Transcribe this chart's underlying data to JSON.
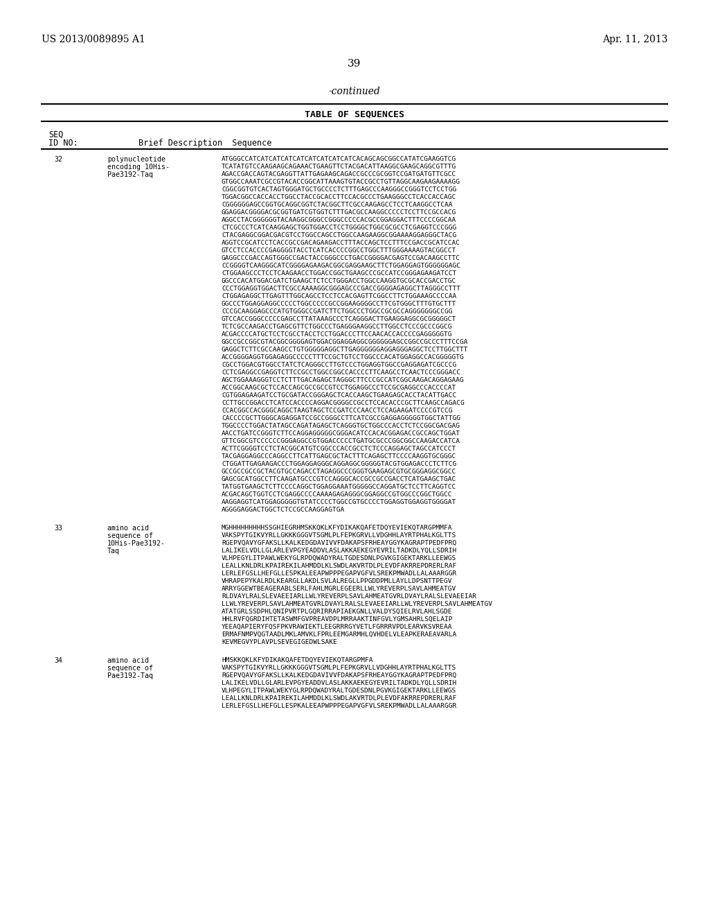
{
  "header_left": "US 2013/0089895 A1",
  "header_right": "Apr. 11, 2013",
  "page_number": "39",
  "continued": "-continued",
  "table_title": "TABLE OF SEQUENCES",
  "col_headers": [
    "SEQ\nID NO:",
    "Brief Description",
    "Sequence"
  ],
  "background_color": "#ffffff",
  "text_color": "#000000",
  "entries": [
    {
      "seq_id": "32",
      "description": "polynucleotide\nencoding 10His-\nPae3192-Taq",
      "sequence": "ATGGGCCATCATCATCATCATCATCATCATCATCACAGCAGCGGCCATATCGAAGGTCG\nTCATATGTCCAAGAAGCAGAAACTGAAGTTCTACGACATTAAGGCGAAGCAGGCGTTTG\nAGACCGACCAGTACGAGGTTATTGAGAAGCAGACCGCCCGCGGTCCGATGATGTTCGCC\nGTGGCCAAATCGCCGTACACCGGCATTAAAGTGTACCGCCTGTTAGGCAAGAAGAAAAGG\nCGGCGGTGTCACTAGTGGGATGCTGCCCCTCTTTGAGCCCAAGGGCCGGGTCCTCCTGG\nTGGACGGCCACCACCTGGCCTACCGCACCTTCCACGCCCTGAAGGGCCTCACCACCAGC\nCGGGGGGAGCCGGTGCAGGCGGTCTACGGCTTCGCCAAGAGCCTCCTCAAGGCCTCAA\nGGAGGACGGGGACGCGGTGATCGTGGTCTTTGACGCCAAGGCCCCCTCCTTCCGCCACG\nAGGCCTACGGGGGGTACAAGGCGGGCCGGGCCCCCACGCCGGAGGACTTTCCCCGGCAA\nCTCGCCCTCATCAAGGAGCTGGTGGACCTCCTGGGGCTGGCGCGCCTCGAGGTCCCGGG\nCTACGAGGCGGACGACGTCCTGGCCAGCCTGGCCAAGAAGGCGGAAAAGGAGGGCTACG\nAGGTCCGCATCCTCACCGCCGACAGAAGACCTTTACCAGCTCCTTTCCGACCGCATCCAC\nGTCCTCCACCCCGAGGGGTACCTCATCACCCCGGCCTGGCTTTGGGAAAAGTACGGCCT\nGAGGCCCGACCAGTGGGCCGACTACCGGGCCCTGACCGGGGACGAGTCCGACAAGCCTTC\nCCGGGGTCAAGGGCATCGGGGAGAAGACGGCGAGGAAGCTTCTGGAGGAGTGGGGGGAGC\nCTGGAAGCCCTCCTCAAGAACCTGGACCGGCTGAAGCCCGCCATCCGGGAGAAGATCCT\nGGCCCACATGGACGATCTGAAGCTCTCCTGGGACCTGGCCAAGGTGCGCACCGACCTGC\nCCCTGGAGGTGGACTTCGCCAAAAGGCGGGAGCCCGACCGGGGAGAGGCTTAGGGCCTTT\nCTGGAGAGGCTTGAGTTTGGCAGCCTCCTCCACGAGTTCGGCCTTCTGGAAAGCCCCAA\nGGCCCTGGAGGAGGCCCCCTGGCCCCCGCCGGAAGGGGCCTTCGTGGGCTTTGTGCTTT\nCCCGCAAGGAGCCCATGTGGGCCGATCTTCTGGCCCTGGCCGCGCCAGGGGGGGCCGG\nGTCCACCGGGCCCCCGAGCCTTATAAAGCCCTCAGGGACTTGAAGGAGGCGCGGGGGCT\nTCTCGCCAAGACCTGAGCGTTCTGGCCCTGAGGGAAGGCCTTGGCCTCCCGCCCGGCG\nACGACCCCATGCTCCTCGCCTACCTCCTGGACCCTTCCAACACCACCCCGAGGGGGTG\nGGCCGCCGGCGTACGGCGGGGAGTGGACGGAGGAGGCGGGGGGAGCCGGCCGCCCTTTCCGA\nGAGGCTCTTCGCCAAGCCTGTGGGGGAGGCTTGAGGGGGGAGGAGGGAGGCTCCTTGGCTTT\nACCGGGGAGGTGGAGAGGCCCCCTTTCCGCTGTCCTGGCCCACATGGAGGCCACGGGGGTG\nCGCCTGGACGTGGCCTATCTCAGGGCCTTGTCCCTGGAGGTGGCCGAGGAGATCGCCCG\nCCTCGAGGCCGAGGTCTTCCGCCTGGCCGGCCACCCCTTCAAGCCTCAACTCCCGGGACC\nAGCTGGAAAGGGTCCTCTTTGACAGAGCTAGGGCTTCCCGCCATCGGCAAGACAGGAGAAG\nACCGGCAAGCGCTCCACCAGCGCCGCCGTCCTGGAGGCCCTCCGCGAGGCCCACCCCAT\nCGTGGAGAAGATCCTGCGATACCGGGAGCTCACCAAGCTGAAGAGCACCTACATTGACC\nCCTTGCCGGACCTCATCCACCCCAGGACGGGGCCGCCTCCACACCCGCTTCAAGCCAGACG\nCCACGGCCACGGGCAGGCTAAGTAGCTCCGATCCCAACCTCCAGAAGATCCCCGTCCG\nCACCCCGCTTGGGCAGAGGATCCGCCGGGCCTTCATCGCCGAGGAGGGGGTGGCTATTGG\nTGGCCCCTGGACTATAGCCAGATAGAGCTCAGGGTGCTGGCCCACCTCTCCGGCGACGAG\nAACCTGATCCGGGTCTTCCAGGAGGGGGCGGGACATCCACACGGAGACCGCCAGCTGGAT\nGTTCGGCGTCCCCCCGGGAGGCCGTGGACCCCCTGATGCGCCCGGCGGCCAAGACCATCA\nACTTCGGGGTCCTCTACGGCATGTCGGCCCACCGCCTCTCCCAGGAGCTAGCCATCCCT\nTACGAGGAGGCCCAGGCCTTCATTGAGCGCTACTTTCAGAGCTTCCCCAAGGTGCGGGC\nCTGGATTGAGAAGACCCTGGAGGAGGGCAGGAGGCGGGGGTACGTGGAGACCCTCTTCG\nGCCGCCGCCGCTACGTGCCAGACCTAGAGGCCCGGGTGAAGAGCGTGCGGGAGGCGGCC\nGAGCGCATGGCCTTCAAGATGCCCGTCCAGGGCACCGCCGCCGACCTCATGAAGCTGAC\nTATGGTGAAGCTCTTCCCCAGGCTGGAGGAAATGGGGGCCAGGATGCTCCTTCAGGTCC\nACGACAGCTGGTCCTCGAGGCCCCAAAAGAGAGGGCGGAGGCCGTGGCCCGGCTGGCC\nAAGGAGGTCATGGAGGGGGTGTATCCCCTGGCCGTGCCCCTGGAGGTGGAGGTGGGGAT\nAGGGGAGGACTGGCTCTCCGCCAAGGAGTGA"
    },
    {
      "seq_id": "33",
      "description": "amino acid\nsequence of\n10His-Pae3192-\nTaq",
      "sequence": "MGHHHHHHHHHSSGHIEGRHMSKKQKLKFYDIKAKQAFETDQYEVIEKQTARGPMMFA\nVAKSPYTGIKVYRLLGKKKGGGVTSGMLPLFEPKGRVLLVDGHHLAYRTPHALKGLTTS\nRGEPVQAVYGFAKSLLKALKEDGDAVIVVFDAKAPSFRHEAYGGYKAGRAPTPEDFPRQ\nLALIKELVDLLGLARLEVPGYEADDVLASLAKKAEKEGYEVRILTADKDLYQLLSDRIH\nVLHPEGYLITPAWLWEKYGLRPDQWADYRALTGDESDNLPGVKGIGEKTARKLLEEWGS\nLEALLKNLDRLKPAIREKILAHMDDLKLSWDLAKVRTDLPLEVDFAKRREPDRERLRAF\nLERLEFGSLLHEFGLLESPKALEEAPWPPPEGAPVGFVLSREKPMWADLLALAAARGGR\nVHRAPEPYKALRDLKEARGLLAKDLSVLALREGLLPPGDDPMLLAYLLDPSNTTPEGV\nARRYGGEWTBEAGERABLSERLFAHLMGRLEGEERLLWLYREVERPLSAVLAHMEATGV\nRLDVAYLRALSLEVAEEIARLLWLYREVERPLSAVLAHMEATGVRLDVAYLRALSLEVAEEIAR\nLLWLYREVERPLSAVLAHMEATGVRLDVAYLRALSLEVAEEIARLLWLYREVERPLSAVLAHMEATGV\nATATGRLSSDPHLQNIPVRTPLGQRIRRAPIAEKGNLLVALDYSQIELRVLAHLSGDE\nHHLRVFQGRDIHTETASWMFGVPREAVDPLMRRAAKTINFGVLYGMSAHRLSQELAIP\nYEEAQAPIERYFQSFPKVRAWIEKTLEEGRRRGYVETLFGRRRVPDLEARVKSVREAA\nERMAFNMPVQGTAADLMKLAMVKLFPRLEEMGARMHLQVHDELVLEAPKERAEAVARLA\nKEVMEGVYPLAVPLSEVEGIGEDWLSAKE"
    },
    {
      "seq_id": "34",
      "description": "amino acid\nsequence of\nPae3192-Taq",
      "sequence": "HMSKKQKLKFYDIKAKQAFETDQYEVIEKQTARGPMFA\nVAKSPYTGIKVYRLLGKKKGGGVTSGMLPLFEPKGRVLLVDGHHLAYRTPHALKGLTTS\nRGEPVQAVYGFAKSLLKALKEDGDAVIVVFDAKAPSFRHEAYGGYKAGRAPTPEDFPRQ\nLALIKELVDLLGLARLEVPGYEADDVLASLAKKAEKEGYEVRILTADKDLYQLLSDRIH\nVLHPEGYLITPAWLWEKYGLRPDQWADYRALTGDESDNLPGVKGIGEKTARKLLEEWGS\nLEALLKNLDRLKPAIREKILAHMDDLKLSWDLAKVRTDLPLEVDFAKRREPDRERLRAF\nLERLEFGSLLHEFGLLESPKALEEAPWPPPEGAPVGFVLSREKPMWADLLALAAARGGR"
    }
  ]
}
